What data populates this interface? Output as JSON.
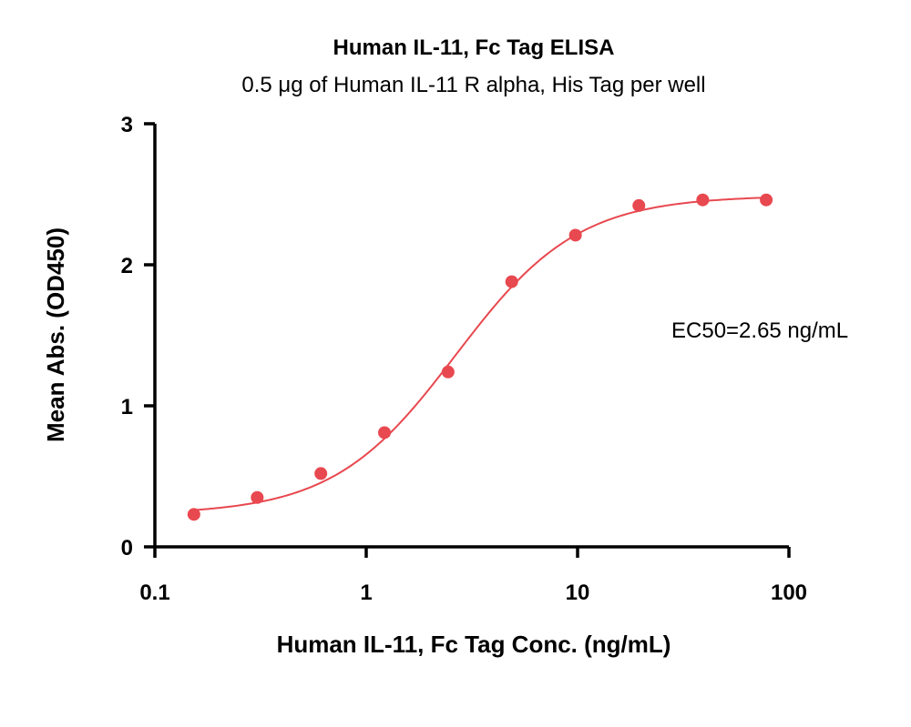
{
  "chart_data": {
    "type": "scatter",
    "title": "Human IL-11, Fc Tag ELISA",
    "subtitle": "0.5 μg of Human IL-11 R alpha, His Tag per well",
    "xlabel": "Human IL-11, Fc Tag Conc. (ng/mL)",
    "ylabel": "Mean Abs. (OD450)",
    "x_scale": "log",
    "xlim": [
      0.1,
      100
    ],
    "ylim": [
      0,
      3
    ],
    "x_ticks": [
      0.1,
      1,
      10,
      100
    ],
    "x_tick_labels": [
      "0.1",
      "1",
      "10",
      "100"
    ],
    "y_ticks": [
      0,
      1,
      2,
      3
    ],
    "y_tick_labels": [
      "0",
      "1",
      "2",
      "3"
    ],
    "grid": false,
    "color": "#e8484f",
    "x": [
      0.153,
      0.305,
      0.61,
      1.22,
      2.44,
      4.88,
      9.77,
      19.5,
      39.1,
      78.1
    ],
    "y": [
      0.23,
      0.35,
      0.52,
      0.81,
      1.24,
      1.88,
      2.21,
      2.42,
      2.46,
      2.46
    ],
    "fit_curve": {
      "model": "4PL",
      "bottom": 0.23,
      "top": 2.49,
      "ec50": 2.65,
      "hill": 1.5
    },
    "annotation": "EC50=2.65 ng/mL"
  }
}
